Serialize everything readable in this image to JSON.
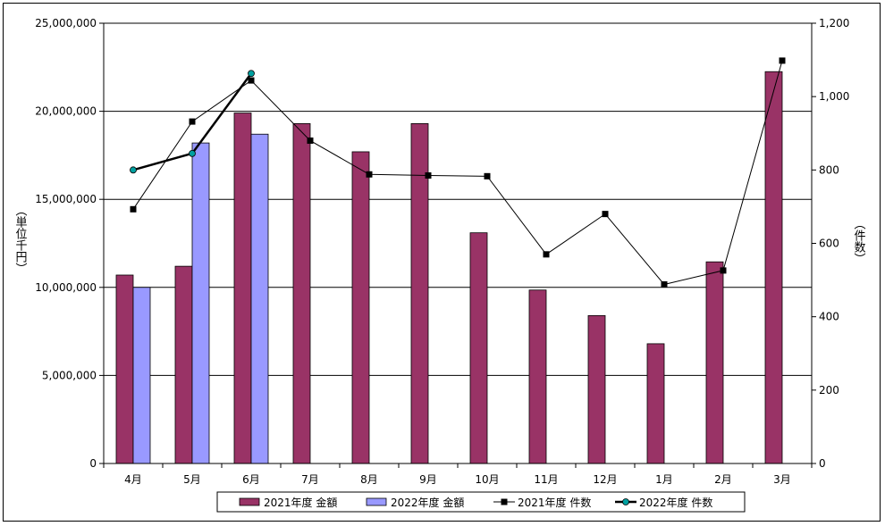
{
  "chart_data": {
    "type": "bar",
    "categories": [
      "4月",
      "5月",
      "6月",
      "7月",
      "8月",
      "9月",
      "10月",
      "11月",
      "12月",
      "1月",
      "2月",
      "3月"
    ],
    "ylabel": "（単位千円）",
    "y2label": "（件数）",
    "ylim": [
      0,
      25000000
    ],
    "y2lim": [
      0,
      1200
    ],
    "yticks": [
      "0",
      "5,000,000",
      "10,000,000",
      "15,000,000",
      "20,000,000",
      "25,000,000"
    ],
    "y2ticks": [
      "0",
      "200",
      "400",
      "600",
      "800",
      "1,000",
      "1,200"
    ],
    "grid": true,
    "legend_position": "bottom",
    "bar_series": [
      {
        "name": "2021年度 金額",
        "color": "#993366",
        "values": [
          10700000,
          11200000,
          19900000,
          19300000,
          17700000,
          19300000,
          13100000,
          9850000,
          8400000,
          6800000,
          11450000,
          22250000
        ]
      },
      {
        "name": "2022年度 金額",
        "color": "#9999ff",
        "values": [
          10000000,
          18200000,
          18700000
        ]
      }
    ],
    "line_series": [
      {
        "name": "2021年度 件数",
        "color": "#000000",
        "marker": "square",
        "values": [
          693,
          932,
          1044,
          880,
          788,
          785,
          783,
          570,
          680,
          488,
          526,
          1098
        ]
      },
      {
        "name": "2022年度 件数",
        "color": "#000000",
        "marker": "circle",
        "marker_color": "#00a0a0",
        "values": [
          800,
          845,
          1063
        ]
      }
    ]
  }
}
